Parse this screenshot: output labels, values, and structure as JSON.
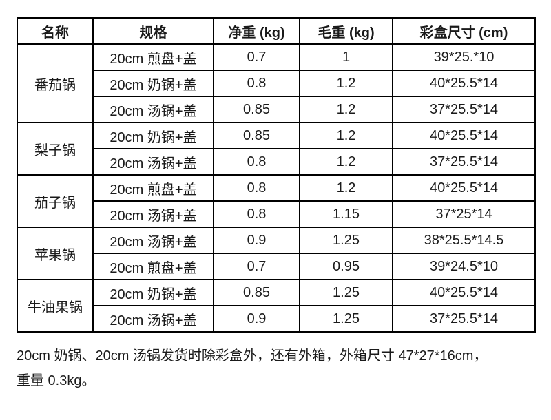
{
  "table": {
    "headers": {
      "name": "名称",
      "spec": "规格",
      "net": "净重 (kg)",
      "gross": "毛重 (kg)",
      "box": "彩盒尺寸 (cm)"
    },
    "groups": [
      {
        "name": "番茄锅",
        "rows": [
          {
            "spec": "20cm 煎盘+盖",
            "net": "0.7",
            "gross": "1",
            "box": "39*25.*10"
          },
          {
            "spec": "20cm 奶锅+盖",
            "net": "0.8",
            "gross": "1.2",
            "box": "40*25.5*14"
          },
          {
            "spec": "20cm 汤锅+盖",
            "net": "0.85",
            "gross": "1.2",
            "box": "37*25.5*14"
          }
        ]
      },
      {
        "name": "梨子锅",
        "rows": [
          {
            "spec": "20cm 奶锅+盖",
            "net": "0.85",
            "gross": "1.2",
            "box": "40*25.5*14"
          },
          {
            "spec": "20cm 汤锅+盖",
            "net": "0.8",
            "gross": "1.2",
            "box": "37*25.5*14"
          }
        ]
      },
      {
        "name": "茄子锅",
        "rows": [
          {
            "spec": "20cm 煎盘+盖",
            "net": "0.8",
            "gross": "1.2",
            "box": "40*25.5*14"
          },
          {
            "spec": "20cm 汤锅+盖",
            "net": "0.8",
            "gross": "1.15",
            "box": "37*25*14"
          }
        ]
      },
      {
        "name": "苹果锅",
        "rows": [
          {
            "spec": "20cm 汤锅+盖",
            "net": "0.9",
            "gross": "1.25",
            "box": "38*25.5*14.5"
          },
          {
            "spec": "20cm 煎盘+盖",
            "net": "0.7",
            "gross": "0.95",
            "box": "39*24.5*10"
          }
        ]
      },
      {
        "name": "牛油果锅",
        "rows": [
          {
            "spec": "20cm 奶锅+盖",
            "net": "0.85",
            "gross": "1.25",
            "box": "40*25.5*14"
          },
          {
            "spec": "20cm 汤锅+盖",
            "net": "0.9",
            "gross": "1.25",
            "box": "37*25.5*14"
          }
        ]
      }
    ]
  },
  "note": {
    "line1": "20cm 奶锅、20cm 汤锅发货时除彩盒外，还有外箱，外箱尺寸 47*27*16cm，",
    "line2": "重量 0.3kg。"
  }
}
